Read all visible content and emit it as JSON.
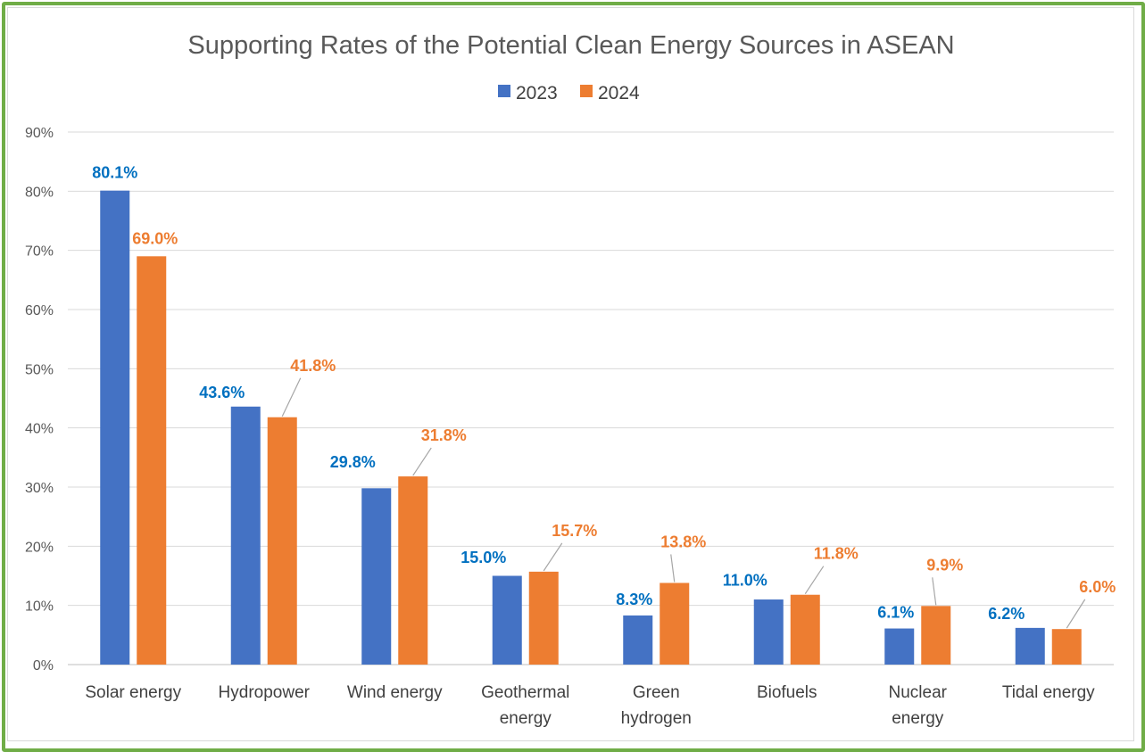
{
  "chart_data": {
    "type": "bar",
    "title": "Supporting Rates of the Potential Clean Energy Sources in ASEAN",
    "categories": [
      [
        "Solar energy"
      ],
      [
        "Hydropower"
      ],
      [
        "Wind energy"
      ],
      [
        "Geothermal",
        "energy"
      ],
      [
        "Green",
        "hydrogen"
      ],
      [
        "Biofuels"
      ],
      [
        "Nuclear",
        "energy"
      ],
      [
        "Tidal energy"
      ]
    ],
    "series": [
      {
        "name": "2023",
        "color": "#4472c4",
        "label_color": "#0070c0",
        "values": [
          80.1,
          43.6,
          29.8,
          15.0,
          8.3,
          11.0,
          6.1,
          6.2
        ],
        "labels": [
          "80.1%",
          "43.6%",
          "29.8%",
          "15.0%",
          "8.3%",
          "11.0%",
          "6.1%",
          "6.2%"
        ]
      },
      {
        "name": "2024",
        "color": "#ed7d31",
        "label_color": "#ed7d31",
        "values": [
          69.0,
          41.8,
          31.8,
          15.7,
          13.8,
          11.8,
          9.9,
          6.0
        ],
        "labels": [
          "69.0%",
          "41.8%",
          "31.8%",
          "15.7%",
          "13.8%",
          "11.8%",
          "9.9%",
          "6.0%"
        ]
      }
    ],
    "ylim": [
      0,
      90
    ],
    "yticks": [
      "0%",
      "10%",
      "20%",
      "30%",
      "40%",
      "50%",
      "60%",
      "70%",
      "80%",
      "90%"
    ],
    "grid": true,
    "legend": "top-center",
    "frame_color": "#70ad47"
  }
}
